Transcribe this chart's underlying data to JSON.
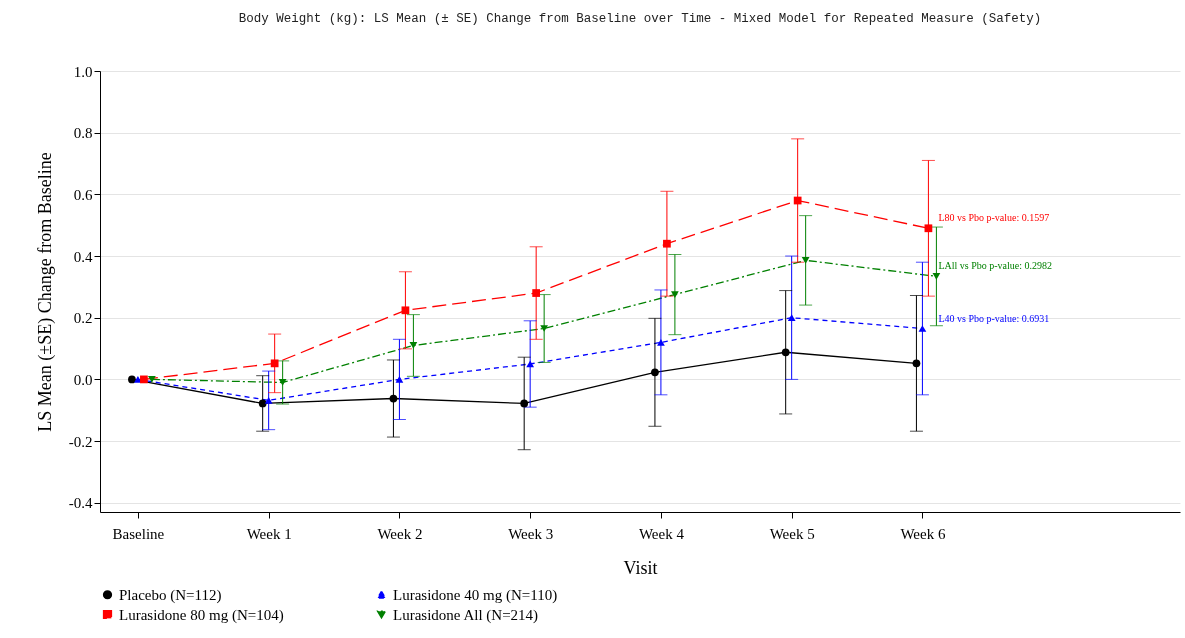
{
  "chart_data": {
    "type": "line",
    "title": "Body Weight (kg): LS Mean (± SE) Change from Baseline over Time - Mixed Model for Repeated Measure (Safety)",
    "xlabel": "Visit",
    "ylabel": "LS Mean (±SE) Change from Baseline",
    "categories": [
      "Baseline",
      "Week 1",
      "Week 2",
      "Week 3",
      "Week 4",
      "Week 5",
      "Week 6"
    ],
    "series": [
      {
        "name": "Placebo (N=112)",
        "color": "#000000",
        "marker": "circle",
        "line_style": "solid",
        "values": [
          0,
          -0.078,
          -0.062,
          -0.078,
          0.023,
          0.088,
          0.052
        ],
        "errors": [
          null,
          0.09,
          0.125,
          0.15,
          0.175,
          0.2,
          0.22
        ]
      },
      {
        "name": "Lurasidone 40 mg (N=110)",
        "color": "#0000ff",
        "marker": "triangle",
        "line_style": "dashed",
        "values": [
          0,
          -0.068,
          0,
          0.05,
          0.12,
          0.2,
          0.165
        ],
        "errors": [
          null,
          0.095,
          0.13,
          0.14,
          0.17,
          0.2,
          0.215
        ]
      },
      {
        "name": "Lurasidone 80 mg (N=104)",
        "color": "#ff0000",
        "marker": "square",
        "line_style": "longdash",
        "values": [
          0,
          0.052,
          0.224,
          0.28,
          0.44,
          0.58,
          0.49
        ],
        "errors": [
          null,
          0.095,
          0.125,
          0.15,
          0.17,
          0.2,
          0.22
        ]
      },
      {
        "name": "Lurasidone All (N=214)",
        "color": "#008000",
        "marker": "triangle-down",
        "line_style": "dashdot",
        "values": [
          0,
          -0.01,
          0.11,
          0.165,
          0.275,
          0.386,
          0.334
        ],
        "errors": [
          null,
          0.07,
          0.1,
          0.11,
          0.13,
          0.145,
          0.16
        ]
      }
    ],
    "ylim": [
      -0.43,
      1.0
    ],
    "yticks": [
      {
        "value": -0.4,
        "label": "-0.4"
      },
      {
        "value": -0.2,
        "label": "-0.2"
      },
      {
        "value": 0,
        "label": "0.0"
      },
      {
        "value": 0.2,
        "label": "0.2"
      },
      {
        "value": 0.4,
        "label": "0.4"
      },
      {
        "value": 0.6,
        "label": "0.6"
      },
      {
        "value": 0.8,
        "label": "0.8"
      },
      {
        "value": 1,
        "label": "1.0"
      }
    ],
    "grid": "y",
    "legend": "bottom",
    "annotations": [
      {
        "text": "L80 vs Pbo p-value: 0.1597",
        "x": "Week 6",
        "y": 0.49
      },
      {
        "text": "LAll vs Pbo p-value: 0.2982",
        "x": "Week 6",
        "y": 0.334
      },
      {
        "text": "L40 vs Pbo p-value: 0.6931",
        "x": "Week 6",
        "y": 0.165
      }
    ]
  }
}
